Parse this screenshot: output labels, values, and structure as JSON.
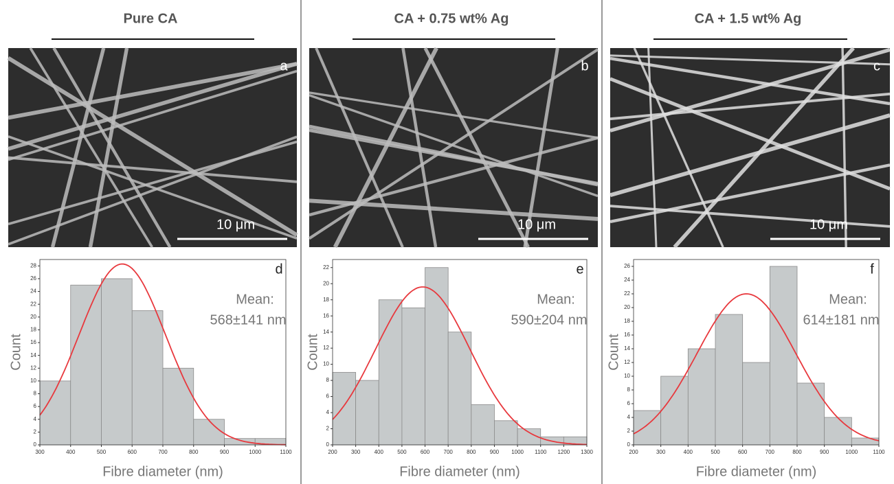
{
  "chart_data": [
    {
      "type": "histogram",
      "image_title": "Pure CA",
      "image_label": "a",
      "scale_bar": "10 μm",
      "panel_label": "d",
      "annotation": "Mean:",
      "mean_text": "568±141 nm",
      "xlabel": "Fibre diameter (nm)",
      "ylabel": "Count",
      "bins": [
        300,
        400,
        500,
        600,
        700,
        800,
        900,
        1000,
        1100
      ],
      "values": [
        10,
        25,
        26,
        21,
        12,
        4,
        1,
        1
      ],
      "color": "#c6cacb",
      "fit": {
        "mean": 568,
        "sd": 141,
        "peak": 28.3,
        "color": "#e8383d"
      },
      "xlim": [
        300,
        1100
      ],
      "xticks": [
        300,
        400,
        500,
        600,
        700,
        800,
        900,
        1000,
        1100
      ],
      "ylim": [
        0,
        29
      ],
      "yticks": [
        0,
        2,
        4,
        6,
        8,
        10,
        12,
        14,
        16,
        18,
        20,
        22,
        24,
        26,
        28
      ]
    },
    {
      "type": "histogram",
      "image_title": "CA + 0.75 wt% Ag",
      "image_label": "b",
      "scale_bar": "10 μm",
      "panel_label": "e",
      "annotation": "Mean:",
      "mean_text": "590±204 nm",
      "xlabel": "Fibre diameter (nm)",
      "ylabel": "Count",
      "bins": [
        200,
        300,
        400,
        500,
        600,
        700,
        800,
        900,
        1000,
        1100,
        1200,
        1300
      ],
      "values": [
        9,
        8,
        18,
        17,
        22,
        14,
        5,
        3,
        2,
        1,
        1
      ],
      "color": "#c6cacb",
      "fit": {
        "mean": 590,
        "sd": 204,
        "peak": 19.6,
        "color": "#e8383d"
      },
      "xlim": [
        200,
        1300
      ],
      "xticks": [
        200,
        300,
        400,
        500,
        600,
        700,
        800,
        900,
        1000,
        1100,
        1200,
        1300
      ],
      "ylim": [
        0,
        23
      ],
      "yticks": [
        0,
        2,
        4,
        6,
        8,
        10,
        12,
        14,
        16,
        18,
        20,
        22
      ]
    },
    {
      "type": "histogram",
      "image_title": "CA + 1.5 wt% Ag",
      "image_label": "c",
      "scale_bar": "10 μm",
      "panel_label": "f",
      "annotation": "Mean:",
      "mean_text": "614±181 nm",
      "xlabel": "Fibre diameter (nm)",
      "ylabel": "Count",
      "bins": [
        200,
        300,
        400,
        500,
        600,
        700,
        800,
        900,
        1000,
        1100
      ],
      "values": [
        5,
        10,
        14,
        19,
        12,
        26,
        9,
        4,
        1
      ],
      "color": "#c6cacb",
      "fit": {
        "mean": 614,
        "sd": 181,
        "peak": 22,
        "color": "#e8383d"
      },
      "xlim": [
        200,
        1100
      ],
      "xticks": [
        200,
        300,
        400,
        500,
        600,
        700,
        800,
        900,
        1000,
        1100
      ],
      "ylim": [
        0,
        27
      ],
      "yticks": [
        0,
        2,
        4,
        6,
        8,
        10,
        12,
        14,
        16,
        18,
        20,
        22,
        24,
        26
      ]
    }
  ]
}
